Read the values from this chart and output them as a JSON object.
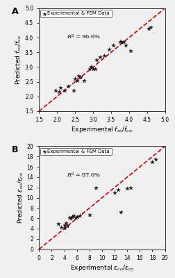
{
  "panel_A": {
    "title_label": "A",
    "r_squared": "$R^2 = 96.6\\%$",
    "x_label": "Experimental $f_{cu}/f_{co}$",
    "y_label": "Predicted $f_{cu}/f_{co}$",
    "xlim": [
      1.5,
      5.0
    ],
    "ylim": [
      1.5,
      5.0
    ],
    "xticks": [
      1.5,
      2.0,
      2.5,
      3.0,
      3.5,
      4.0,
      4.5,
      5.0
    ],
    "yticks": [
      1.5,
      2.0,
      2.5,
      3.0,
      3.5,
      4.0,
      4.5,
      5.0
    ],
    "diagonal": [
      1.5,
      5.0
    ],
    "scatter_x": [
      1.95,
      2.05,
      2.1,
      2.2,
      2.3,
      2.45,
      2.5,
      2.55,
      2.6,
      2.65,
      2.75,
      2.9,
      2.95,
      3.0,
      3.05,
      3.1,
      3.2,
      3.3,
      3.45,
      3.55,
      3.75,
      3.8,
      3.85,
      3.9,
      4.05,
      4.55,
      4.6
    ],
    "scatter_y": [
      2.2,
      2.15,
      2.3,
      2.2,
      2.35,
      2.2,
      2.6,
      2.55,
      2.7,
      2.65,
      2.55,
      2.95,
      3.0,
      2.95,
      2.95,
      3.25,
      3.35,
      3.4,
      3.6,
      3.75,
      3.85,
      3.85,
      3.85,
      3.75,
      3.55,
      4.3,
      4.35
    ],
    "legend_label": "Experimental & FEM Data",
    "marker": "*",
    "marker_color": "#1a1a1a",
    "marker_size": 18
  },
  "panel_B": {
    "title_label": "B",
    "r_squared": "$R^2 = 87.6\\%$",
    "x_label": "Experimental $\\varepsilon_{cu}/\\varepsilon_{co}$",
    "y_label": "Predicted $\\varepsilon_{cu}/\\varepsilon_{co}$",
    "xlim": [
      0,
      20
    ],
    "ylim": [
      0,
      20
    ],
    "xticks": [
      0,
      2,
      4,
      6,
      8,
      10,
      12,
      14,
      16,
      18,
      20
    ],
    "yticks": [
      0,
      2,
      4,
      6,
      8,
      10,
      12,
      14,
      16,
      18,
      20
    ],
    "diagonal": [
      0,
      20
    ],
    "scatter_x": [
      3.0,
      3.5,
      4.0,
      4.0,
      4.3,
      4.5,
      4.8,
      5.0,
      5.3,
      5.5,
      5.8,
      6.0,
      6.5,
      8.0,
      9.0,
      12.0,
      12.5,
      13.0,
      14.0,
      14.5,
      18.0,
      18.5
    ],
    "scatter_y": [
      5.0,
      4.2,
      4.1,
      4.7,
      5.1,
      4.5,
      6.2,
      6.0,
      6.3,
      6.5,
      6.1,
      6.3,
      6.6,
      6.7,
      12.0,
      11.0,
      11.5,
      7.2,
      11.8,
      12.0,
      17.0,
      17.5
    ],
    "legend_label": "Experimental & FEM Data",
    "marker": "*",
    "marker_color": "#1a1a1a",
    "marker_size": 18
  },
  "fig_bg": "#f0f0f0",
  "axes_bg": "#f0f0f0",
  "dashed_color": "#cc0000",
  "dashed_linewidth": 1.2,
  "dashed_style": "--"
}
